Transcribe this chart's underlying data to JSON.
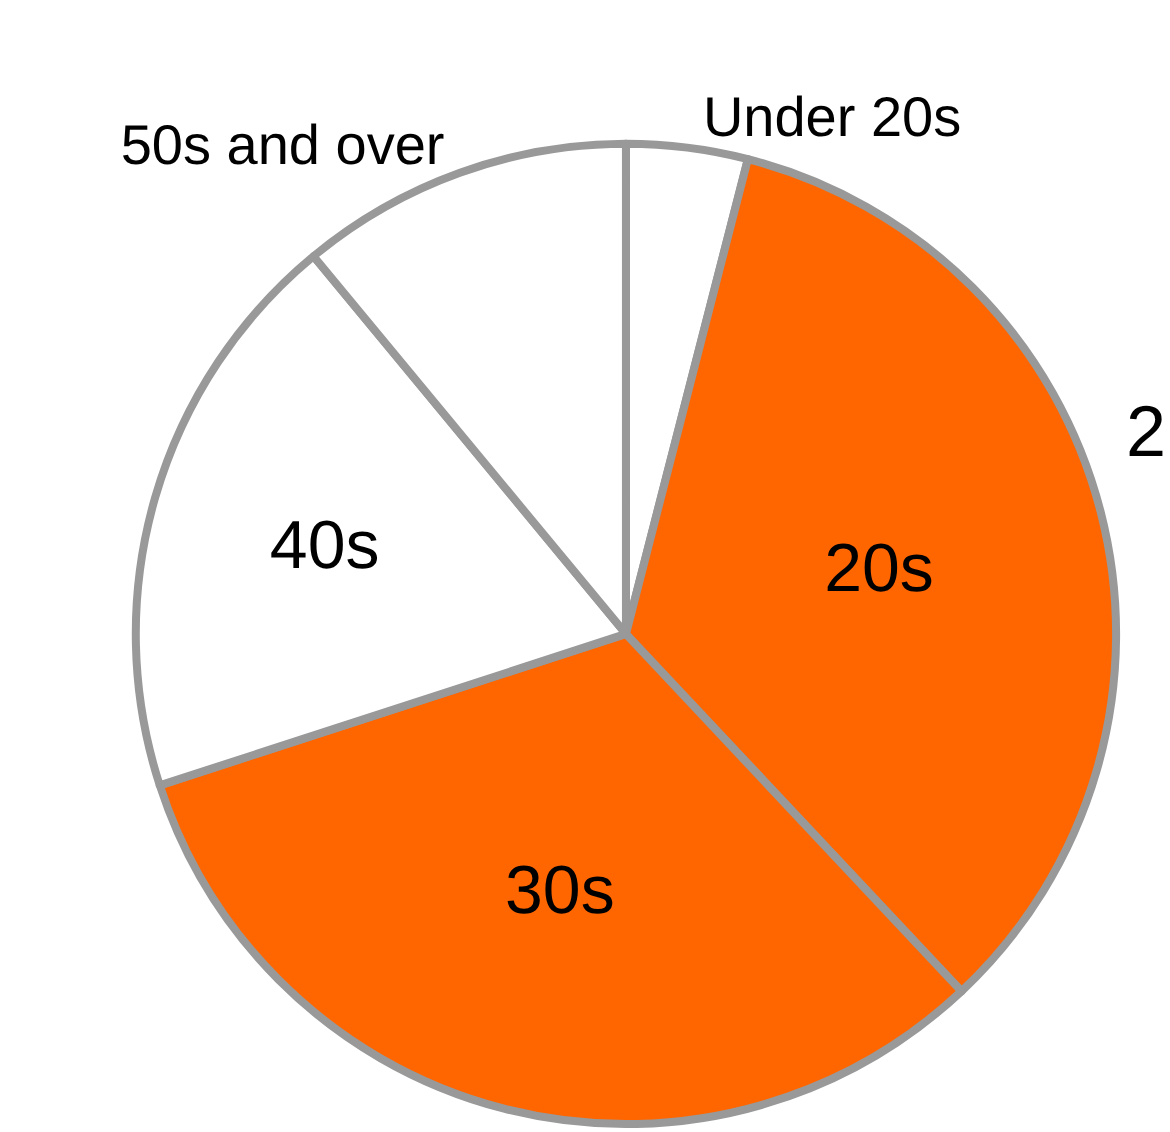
{
  "chart_data": {
    "type": "pie",
    "categories": [
      "Under 20s",
      "20s",
      "30s",
      "40s",
      "50s and over"
    ],
    "values": [
      4,
      34,
      32,
      19,
      11
    ],
    "colors": [
      "#ffffff",
      "#ff6600",
      "#ff6600",
      "#ffffff",
      "#ffffff"
    ],
    "annotations": [
      "2"
    ]
  }
}
